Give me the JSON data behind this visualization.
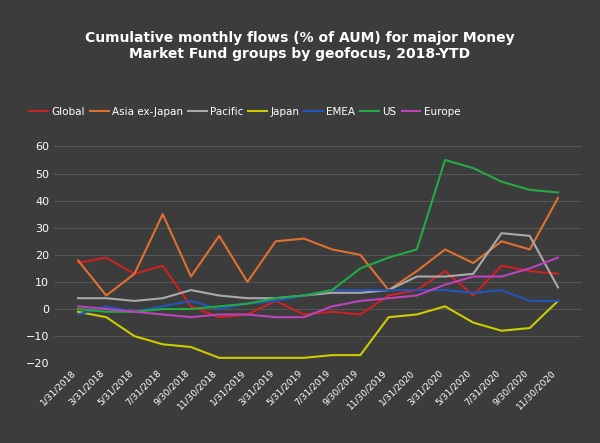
{
  "title": "Cumulative monthly flows (% of AUM) for major Money\nMarket Fund groups by geofocus, 2018-YTD",
  "background_color": "#3c3c3c",
  "text_color": "#ffffff",
  "grid_color": "#606060",
  "ylim": [
    -20,
    65
  ],
  "yticks": [
    -20,
    -10,
    0,
    10,
    20,
    30,
    40,
    50,
    60
  ],
  "x_labels": [
    "1/31/2018",
    "3/31/2018",
    "5/31/2018",
    "7/31/2018",
    "9/30/2018",
    "11/30/2018",
    "1/31/2019",
    "3/31/2019",
    "5/31/2019",
    "7/31/2019",
    "9/30/2019",
    "11/30/2019",
    "1/31/2020",
    "3/31/2020",
    "5/31/2020",
    "7/31/2020",
    "9/30/2020",
    "11/30/2020"
  ],
  "series": [
    {
      "name": "Global",
      "color": "#cc2222",
      "data": [
        17,
        19,
        13,
        16,
        1,
        -3,
        -2,
        3,
        -2,
        -1,
        -2,
        5,
        7,
        14,
        5,
        16,
        14,
        13
      ]
    },
    {
      "name": "Asia ex-Japan",
      "color": "#e07030",
      "data": [
        18,
        5,
        13,
        35,
        12,
        27,
        10,
        25,
        26,
        22,
        20,
        7,
        14,
        22,
        17,
        25,
        22,
        41
      ]
    },
    {
      "name": "Pacific",
      "color": "#aaaaaa",
      "data": [
        4,
        4,
        3,
        4,
        7,
        5,
        4,
        4,
        5,
        6,
        6,
        7,
        12,
        12,
        13,
        28,
        27,
        8
      ]
    },
    {
      "name": "Japan",
      "color": "#cccc00",
      "data": [
        -1,
        -3,
        -10,
        -13,
        -14,
        -18,
        -18,
        -18,
        -18,
        -17,
        -17,
        -3,
        -2,
        1,
        -5,
        -8,
        -7,
        3
      ]
    },
    {
      "name": "EMEA",
      "color": "#2255bb",
      "data": [
        -2,
        1,
        -1,
        1,
        3,
        0,
        2,
        3,
        5,
        7,
        7,
        7,
        7,
        7,
        6,
        7,
        3,
        3
      ]
    },
    {
      "name": "US",
      "color": "#22aa44",
      "data": [
        0,
        -1,
        -1,
        0,
        0,
        1,
        2,
        4,
        5,
        7,
        15,
        19,
        22,
        55,
        52,
        47,
        44,
        43
      ]
    },
    {
      "name": "Europe",
      "color": "#bb44bb",
      "data": [
        1,
        0,
        -1,
        -2,
        -3,
        -2,
        -2,
        -3,
        -3,
        1,
        3,
        4,
        5,
        9,
        12,
        12,
        15,
        19
      ]
    }
  ]
}
